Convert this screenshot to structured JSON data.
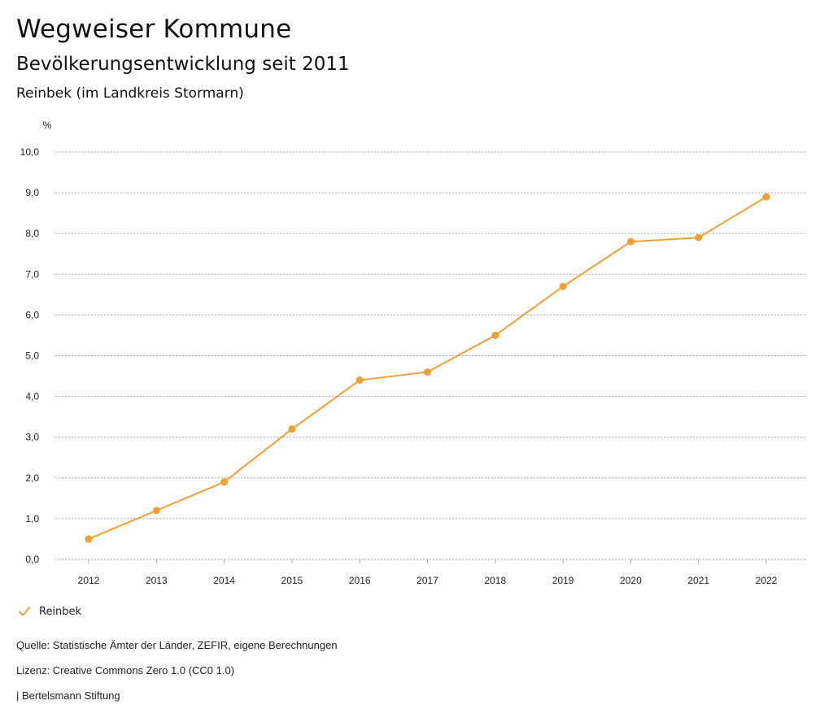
{
  "header": {
    "title": "Wegweiser Kommune",
    "subtitle": "Bevölkerungsentwicklung seit 2011",
    "region": "Reinbek (im Landkreis Stormarn)"
  },
  "chart_data": {
    "type": "line",
    "ylabel": "%",
    "ylim": [
      0,
      10
    ],
    "yticks": [
      "0,0",
      "1,0",
      "2,0",
      "3,0",
      "4,0",
      "5,0",
      "6,0",
      "7,0",
      "8,0",
      "9,0",
      "10,0"
    ],
    "categories": [
      "2012",
      "2013",
      "2014",
      "2015",
      "2016",
      "2017",
      "2018",
      "2019",
      "2020",
      "2021",
      "2022"
    ],
    "series": [
      {
        "name": "Reinbek",
        "color": "#f0a035",
        "values": [
          0.5,
          1.2,
          1.9,
          3.2,
          4.4,
          4.6,
          5.5,
          6.7,
          7.8,
          7.9,
          8.9
        ]
      }
    ],
    "grid": true,
    "legend": "bottom-left"
  },
  "legend": {
    "label": "Reinbek",
    "icon": "check-icon"
  },
  "footer": {
    "source": "Quelle: Statistische Ämter der Länder, ZEFIR, eigene Berechnungen",
    "license": "Lizenz: Creative Commons Zero 1.0 (CC0 1.0)",
    "brand": "| Bertelsmann Stiftung"
  }
}
